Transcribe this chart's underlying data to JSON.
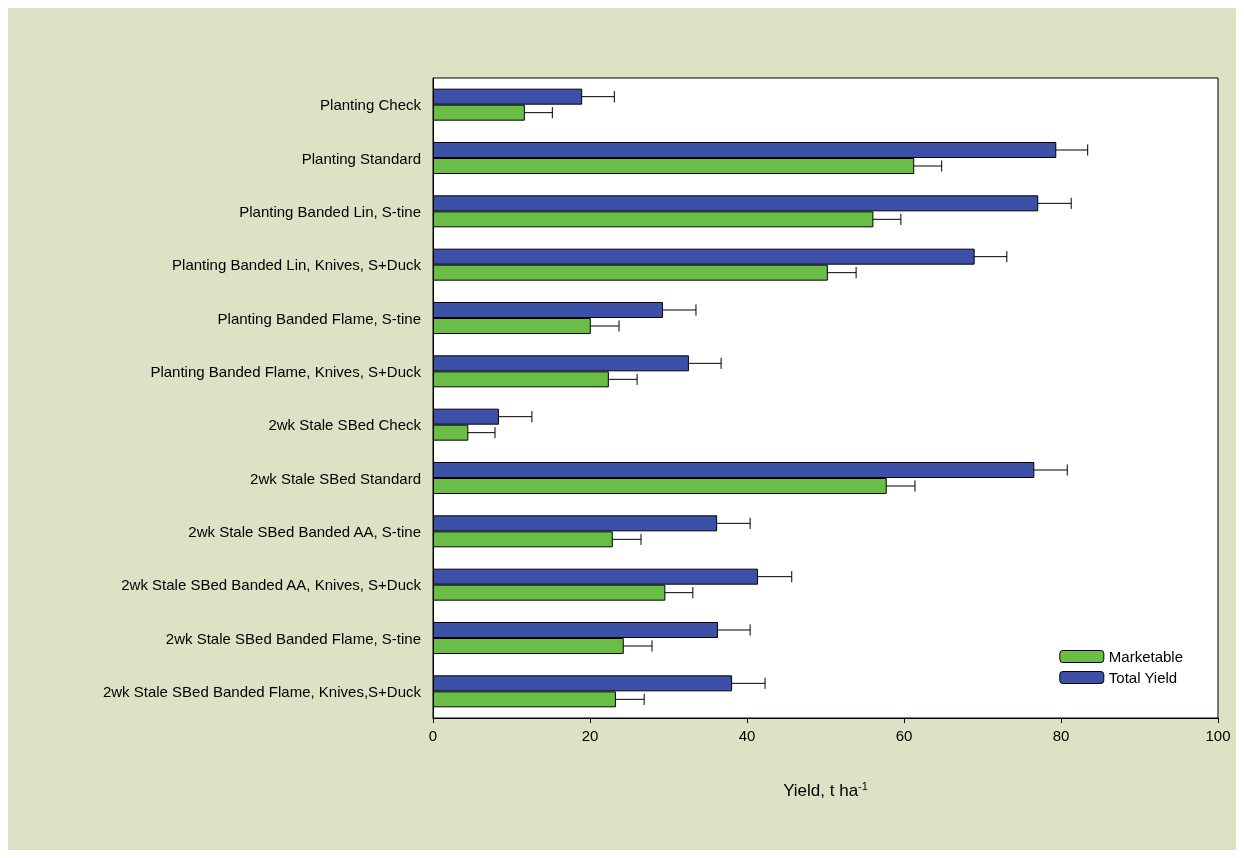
{
  "chart_data": {
    "type": "bar",
    "orientation": "horizontal",
    "xlabel": "Yield, t ha$^{-1}$",
    "categories": [
      "Planting Check",
      "Planting Standard",
      "Planting Banded Lin, S-tine",
      "Planting Banded Lin, Knives, S+Duck",
      "Planting Banded Flame, S-tine",
      "Planting Banded Flame, Knives, S+Duck",
      "2wk Stale SBed Check",
      "2wk Stale SBed Standard",
      "2wk Stale SBed Banded AA, S-tine",
      "2wk Stale SBed Banded AA, Knives, S+Duck",
      "2wk Stale SBed Banded Flame, S-tine",
      "2wk Stale SBed Banded Flame, Knives,S+Duck"
    ],
    "series": [
      {
        "name": "Marketable",
        "color": "#6abd45",
        "values": [
          11.7,
          61.3,
          56.1,
          50.3,
          20.1,
          22.4,
          4.5,
          57.8,
          22.9,
          29.6,
          24.3,
          23.3
        ],
        "errors": [
          3.5,
          3.5,
          3.5,
          3.6,
          3.6,
          3.6,
          3.4,
          3.6,
          3.6,
          3.5,
          3.6,
          3.6
        ]
      },
      {
        "name": "Total Yield",
        "color": "#3b50a6",
        "values": [
          19.0,
          79.4,
          77.1,
          69.0,
          29.3,
          32.6,
          8.4,
          76.6,
          36.2,
          41.4,
          36.3,
          38.1
        ],
        "errors": [
          4.1,
          4.0,
          4.2,
          4.1,
          4.2,
          4.1,
          4.2,
          4.2,
          4.2,
          4.3,
          4.1,
          4.2
        ]
      }
    ],
    "xlim": [
      0,
      100
    ],
    "xticks": [
      0,
      20,
      40,
      60,
      80,
      100
    ],
    "grid": false,
    "legend": "bottom right"
  }
}
